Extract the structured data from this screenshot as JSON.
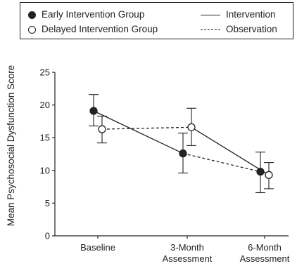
{
  "legend": {
    "early": "Early Intervention Group",
    "delayed": "Delayed Intervention Group",
    "intervention": "Intervention",
    "observation": "Observation"
  },
  "chart_data": {
    "type": "line",
    "categories": [
      "Baseline",
      "3-Month\nAssessment",
      "6-Month\nAssessment"
    ],
    "ylabel": "Mean Psychosocial Dysfunction Score",
    "xlabel": "",
    "ylim": [
      0,
      25
    ],
    "yticks": [
      0,
      5,
      10,
      15,
      20,
      25
    ],
    "grid": false,
    "legend_position": "top",
    "series": [
      {
        "name": "Early Intervention Group",
        "marker": "filled-circle",
        "values": [
          19.1,
          12.6,
          9.8
        ],
        "error_low": [
          16.8,
          9.6,
          6.6
        ],
        "error_high": [
          21.6,
          15.7,
          12.8
        ],
        "segment_styles": [
          "solid",
          "dashed"
        ]
      },
      {
        "name": "Delayed Intervention Group",
        "marker": "open-circle",
        "values": [
          16.3,
          16.6,
          9.3
        ],
        "error_low": [
          14.2,
          13.8,
          7.2
        ],
        "error_high": [
          18.3,
          19.5,
          11.2
        ],
        "segment_styles": [
          "dashed",
          "solid"
        ]
      }
    ],
    "line_styles": {
      "Intervention": "solid",
      "Observation": "dashed"
    }
  }
}
